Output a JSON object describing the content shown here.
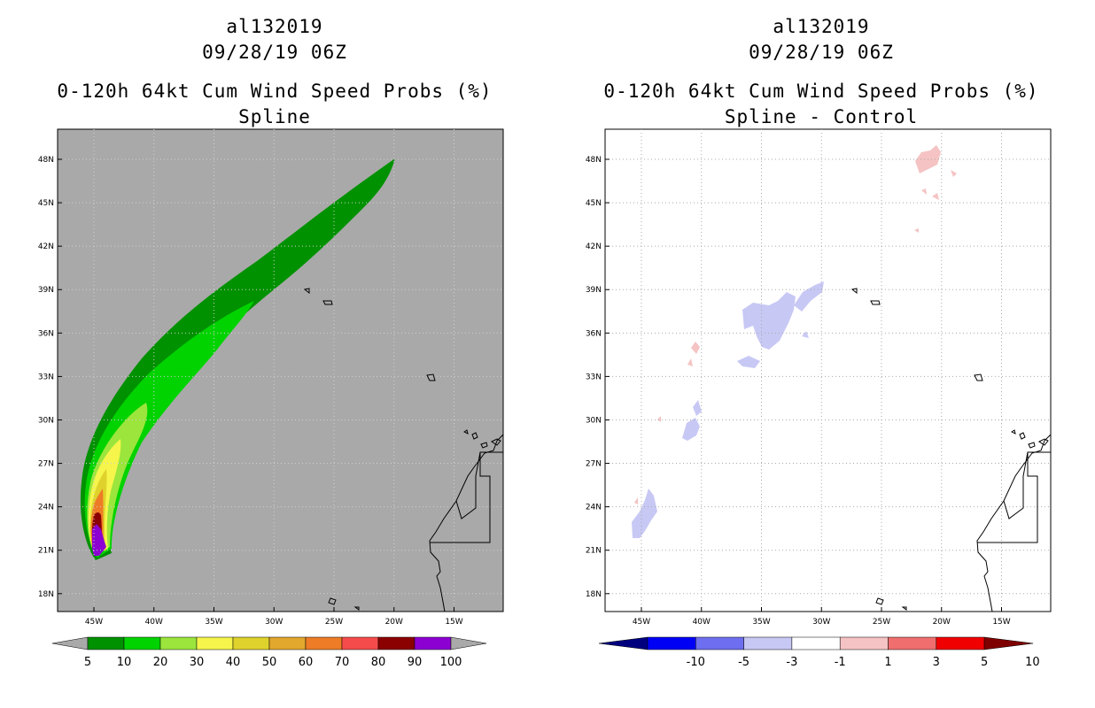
{
  "chart_data": [
    {
      "type": "heatmap",
      "panel": "left",
      "title_lines": [
        "al132019",
        "09/28/19 06Z",
        "0-120h 64kt Cum Wind Speed Probs (%)",
        "Spline"
      ],
      "x_ticks": [
        "45W",
        "40W",
        "35W",
        "30W",
        "25W",
        "20W",
        "15W"
      ],
      "y_ticks": [
        "48N",
        "45N",
        "42N",
        "39N",
        "36N",
        "33N",
        "30N",
        "27N",
        "24N",
        "21N",
        "18N"
      ],
      "xlim": [
        -47.5,
        -11
      ],
      "ylim": [
        16.8,
        50
      ],
      "colorbar": {
        "labels": [
          "5",
          "10",
          "20",
          "30",
          "40",
          "50",
          "60",
          "70",
          "80",
          "90",
          "100"
        ],
        "colors": [
          "#009100",
          "#00d300",
          "#9be53c",
          "#f5f54b",
          "#dfd22c",
          "#e2a72d",
          "#ee7c26",
          "#f54b4b",
          "#8b0000",
          "#8c00d2"
        ]
      },
      "background_color": "#a9a9a9"
    },
    {
      "type": "heatmap",
      "panel": "right",
      "title_lines": [
        "al132019",
        "09/28/19 06Z",
        "0-120h 64kt Cum Wind Speed Probs (%)",
        "Spline - Control"
      ],
      "x_ticks": [
        "45W",
        "40W",
        "35W",
        "30W",
        "25W",
        "20W",
        "15W"
      ],
      "y_ticks": [
        "48N",
        "45N",
        "42N",
        "39N",
        "36N",
        "33N",
        "30N",
        "27N",
        "24N",
        "21N",
        "18N"
      ],
      "xlim": [
        -47.5,
        -11
      ],
      "ylim": [
        16.8,
        50
      ],
      "colorbar": {
        "labels": [
          "-10",
          "-5",
          "-3",
          "-1",
          "1",
          "3",
          "5",
          "10"
        ],
        "colors": [
          "#00007f",
          "#0000f5",
          "#6e6ef0",
          "#c8c8f5",
          "#ffffff",
          "#f5c3c3",
          "#f06e6e",
          "#f00000",
          "#7f0000"
        ]
      },
      "background_color": "#ffffff"
    }
  ]
}
